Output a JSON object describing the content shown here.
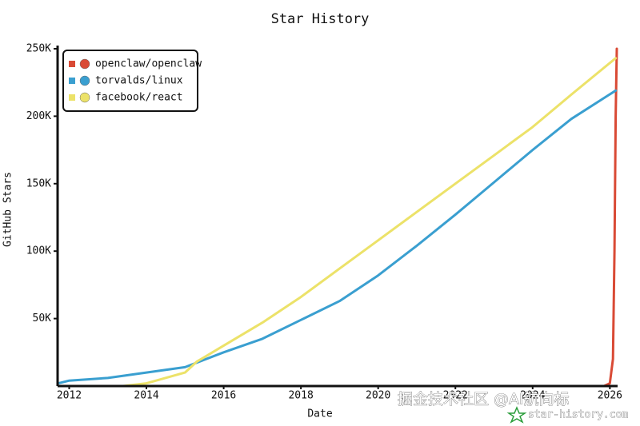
{
  "chart_data": {
    "type": "line",
    "title": "Star History",
    "x_label": "Date",
    "y_label": "GitHub Stars",
    "xlim": [
      2011.7,
      2026.2
    ],
    "xticks": [
      2012,
      2014,
      2016,
      2018,
      2020,
      2022,
      2024,
      2026
    ],
    "ylim": [
      0,
      250000
    ],
    "yticks": [
      {
        "value": 50000,
        "label": "50K"
      },
      {
        "value": 100000,
        "label": "100K"
      },
      {
        "value": 150000,
        "label": "150K"
      },
      {
        "value": 200000,
        "label": "200K"
      },
      {
        "value": 250000,
        "label": "250K"
      }
    ],
    "legend": "upper left",
    "series": [
      {
        "name": "openclaw/openclaw",
        "color": "#d94a35",
        "x": [
          2025.85,
          2026.0,
          2026.08,
          2026.12,
          2026.15,
          2026.18
        ],
        "values": [
          0,
          2000,
          20000,
          100000,
          200000,
          250000
        ]
      },
      {
        "name": "torvalds/linux",
        "color": "#3a9fd0",
        "x": [
          2011.72,
          2012,
          2013,
          2014,
          2015,
          2016,
          2017,
          2018,
          2019,
          2020,
          2021,
          2022,
          2023,
          2024,
          2025,
          2026.15
        ],
        "values": [
          2000,
          4000,
          6000,
          10000,
          14000,
          25000,
          35000,
          49000,
          63000,
          82000,
          104000,
          127000,
          151000,
          175000,
          198000,
          219000
        ]
      },
      {
        "name": "facebook/react",
        "color": "#ece269",
        "x": [
          2013.4,
          2014,
          2015,
          2015.3,
          2016,
          2017,
          2018,
          2019,
          2020,
          2021,
          2022,
          2023,
          2024,
          2025,
          2026.15
        ],
        "values": [
          0,
          2000,
          10000,
          18000,
          30000,
          47000,
          66000,
          87000,
          108000,
          129000,
          150000,
          171000,
          192000,
          216000,
          243000
        ]
      }
    ],
    "watermark": "掘金技术社区 @AI航向标",
    "source": "star-history.com"
  }
}
